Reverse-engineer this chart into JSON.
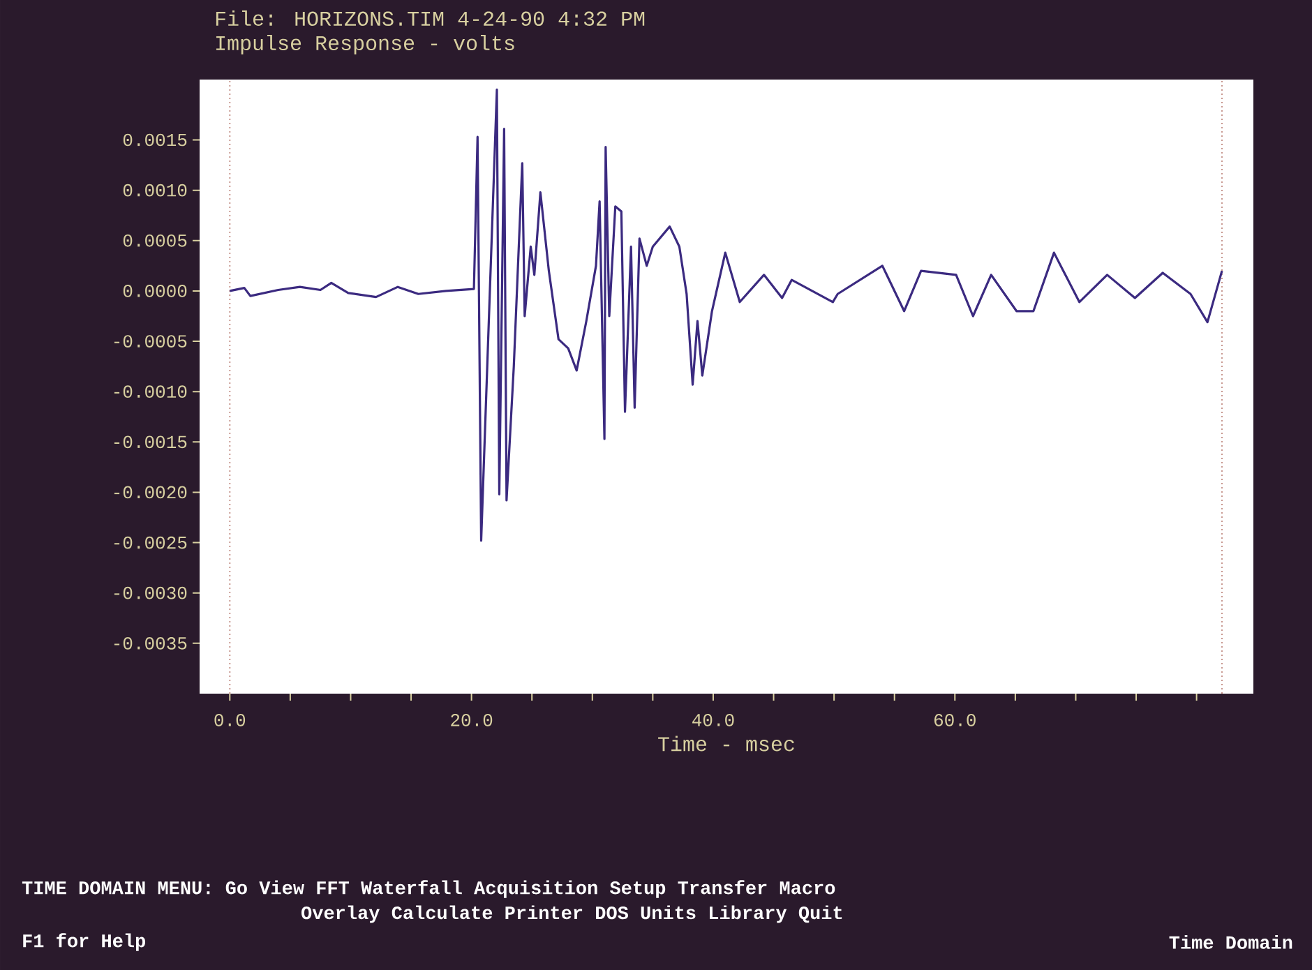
{
  "chart_data": {
    "type": "line",
    "title": "File: HORIZONS.TIM 4-24-90 4:32 PM",
    "subtitle": "Impulse Response - volts",
    "xlabel": "Time - msec",
    "annotations": [
      "TIME DOMAIN MENU: Go View FFT Waterfall Acquisition Setup Transfer Macro",
      "Overlay Calculate Printer DOS Units Library Quit",
      "F1 for Help",
      "Time Domain"
    ],
    "series": [
      {
        "color": "#3b2a80",
        "x": [
          0,
          1.2,
          1.7,
          4.0,
          5.8,
          7.5,
          8.4,
          9.8,
          12.1,
          13.9,
          15.6,
          17.9,
          20.2,
          20.5,
          20.8,
          22.1,
          22.3,
          22.7,
          22.9,
          23.5,
          24.2,
          24.4,
          24.9,
          25.2,
          25.7,
          26.4,
          27.2,
          28.0,
          28.7,
          29.5,
          30.3,
          30.6,
          31.0,
          31.1,
          31.4,
          31.9,
          32.4,
          32.7,
          33.2,
          33.5,
          33.9,
          34.5,
          35.0,
          36.4,
          37.2,
          37.8,
          38.3,
          38.7,
          39.1,
          39.9,
          41.0,
          42.2,
          44.2,
          45.7,
          46.5,
          49.9,
          50.3,
          54.0,
          55.8,
          57.2,
          60.1,
          61.5,
          63.0,
          65.1,
          66.5,
          68.2,
          70.3,
          72.6,
          74.9,
          77.2,
          79.5,
          80.9,
          82.1
        ],
        "values": [
          0,
          3e-05,
          -5e-05,
          1e-05,
          4e-05,
          1e-05,
          8e-05,
          -2e-05,
          -6e-05,
          4e-05,
          -3e-05,
          0,
          2e-05,
          0.00153,
          -0.00248,
          0.002,
          -0.00202,
          0.00161,
          -0.00208,
          -0.00075,
          0.00127,
          -0.00025,
          0.00044,
          0.00016,
          0.00098,
          0.0002,
          -0.00048,
          -0.00057,
          -0.00079,
          -0.0003,
          0.00025,
          0.00089,
          -0.00147,
          0.00143,
          -0.00025,
          0.00084,
          0.00079,
          -0.0012,
          0.00044,
          -0.00116,
          0.00052,
          0.00025,
          0.00044,
          0.00064,
          0.00044,
          -3e-05,
          -0.00093,
          -0.0003,
          -0.00084,
          -0.0002,
          0.00038,
          -0.00011,
          0.00016,
          -7e-05,
          0.00011,
          -0.00011,
          -3e-05,
          0.00025,
          -0.0002,
          0.0002,
          0.00016,
          -0.00025,
          0.00016,
          -0.0002,
          -0.0002,
          0.00038,
          -0.00011,
          0.00016,
          -7e-05,
          0.00018,
          -3e-05,
          -0.00031,
          0.0002
        ]
      }
    ],
    "xlim": [
      -2.5,
      84.7
    ],
    "ylim": [
      -0.004,
      0.0021
    ],
    "xticks": [
      {
        "value": 0,
        "label": "0.0"
      },
      {
        "value": 5,
        "label": null
      },
      {
        "value": 10,
        "label": null
      },
      {
        "value": 15,
        "label": null
      },
      {
        "value": 20,
        "label": "20.0"
      },
      {
        "value": 25,
        "label": null
      },
      {
        "value": 30,
        "label": null
      },
      {
        "value": 35,
        "label": null
      },
      {
        "value": 40,
        "label": "40.0"
      },
      {
        "value": 45,
        "label": null
      },
      {
        "value": 50,
        "label": null
      },
      {
        "value": 55,
        "label": null
      },
      {
        "value": 60,
        "label": "60.0"
      },
      {
        "value": 65,
        "label": null
      },
      {
        "value": 70,
        "label": null
      },
      {
        "value": 75,
        "label": null
      },
      {
        "value": 80,
        "label": null
      }
    ],
    "yticks": [
      {
        "value": 0.0015,
        "label": "0.0015"
      },
      {
        "value": 0.001,
        "label": "0.0010"
      },
      {
        "value": 0.0005,
        "label": "0.0005"
      },
      {
        "value": 0,
        "label": "0.0000"
      },
      {
        "value": -0.0005,
        "label": "-0.0005"
      },
      {
        "value": -0.001,
        "label": "-0.0010"
      },
      {
        "value": -0.0015,
        "label": "-0.0015"
      },
      {
        "value": -0.002,
        "label": "-0.0020"
      },
      {
        "value": -0.0025,
        "label": "-0.0025"
      },
      {
        "value": -0.003,
        "label": "-0.0030"
      },
      {
        "value": -0.0035,
        "label": "-0.0035"
      }
    ],
    "ref_lines": [
      {
        "axis": "x",
        "value": 0,
        "color": "#c89890",
        "line_style": "dotted"
      },
      {
        "axis": "x",
        "value": 82.1,
        "color": "#c89890",
        "line_style": "dotted"
      }
    ],
    "marker": "none",
    "line_style": "solid"
  }
}
